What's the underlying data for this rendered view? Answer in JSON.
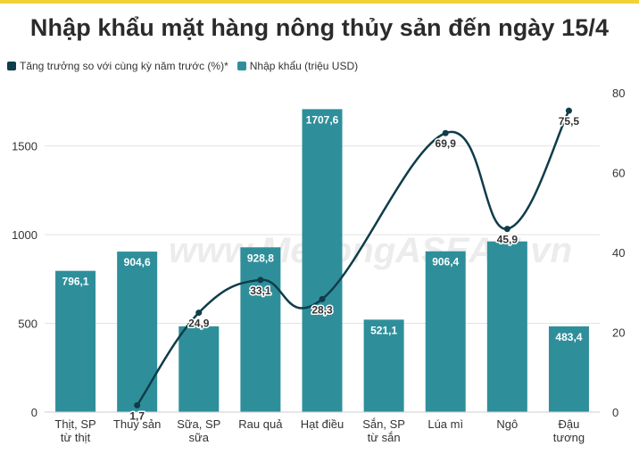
{
  "title": "Nhập khẩu mặt hàng nông thủy sản đến ngày 15/4",
  "watermark": "www.MekongASEAN.vn",
  "legend": {
    "line_label": "Tăng trưởng so với cùng kỳ năm trước (%)*",
    "bar_label": "Nhập khẩu (triệu USD)"
  },
  "colors": {
    "bar": "#2e8f9b",
    "line": "#0f3d4a",
    "accent": "#f1d13a"
  },
  "chart_data": {
    "type": "bar",
    "title": "Nhập khẩu mặt hàng nông thủy sản đến ngày 15/4",
    "categories": [
      [
        "Thịt, SP",
        "từ thịt"
      ],
      [
        "Thủy sản"
      ],
      [
        "Sữa, SP",
        "sữa"
      ],
      [
        "Rau quả"
      ],
      [
        "Hạt điều"
      ],
      [
        "Sắn, SP",
        "từ sắn"
      ],
      [
        "Lúa mì"
      ],
      [
        "Ngô"
      ],
      [
        "Đậu",
        "tương"
      ]
    ],
    "series": [
      {
        "name": "Nhập khẩu (triệu USD)",
        "type": "bar",
        "axis": "left",
        "values": [
          796.1,
          904.6,
          483.5,
          928.8,
          1707.6,
          521.1,
          906.4,
          962.0,
          483.4
        ],
        "labels": [
          "796,1",
          "904,6",
          "",
          "928,8",
          "1707,6",
          "521,1",
          "906,4",
          "",
          "483,4"
        ]
      },
      {
        "name": "Tăng trưởng so với cùng kỳ năm trước (%)*",
        "type": "line",
        "axis": "right",
        "values": [
          null,
          1.7,
          24.9,
          33.1,
          28.3,
          null,
          69.9,
          45.9,
          75.5
        ],
        "labels": [
          "",
          "1,7",
          "24,9",
          "33,1",
          "28,3",
          "",
          "69,9",
          "45,9",
          "75,5"
        ]
      }
    ],
    "y_left": {
      "ylim": [
        0,
        1800
      ],
      "ticks": [
        "0",
        "500",
        "1000",
        "1500"
      ]
    },
    "y_right": {
      "ylim": [
        0,
        80
      ],
      "ticks": [
        "0",
        "20",
        "40",
        "60",
        "80"
      ]
    },
    "grid": true,
    "legend_position": "top-left"
  }
}
